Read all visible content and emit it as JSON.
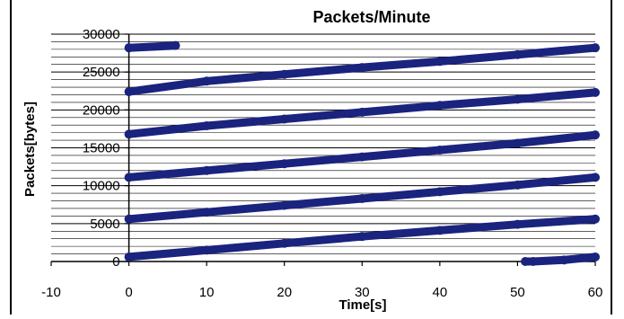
{
  "chart_data": {
    "type": "scatter",
    "title": "Packets/Minute",
    "xlabel": "Time[s]",
    "ylabel": "Packets[bytes]",
    "xlim": [
      -10,
      60
    ],
    "ylim": [
      0,
      30000
    ],
    "x_ticks": [
      -10,
      0,
      10,
      20,
      30,
      40,
      50,
      60
    ],
    "y_ticks": [
      0,
      5000,
      10000,
      15000,
      20000,
      25000,
      30000
    ],
    "grid": "horizontal",
    "legend": "none",
    "marker_color": "#1a237e",
    "series": [
      {
        "values": [
          {
            "x": 0,
            "y": 28200
          },
          {
            "x": 6,
            "y": 28500
          },
          {
            "x": 0,
            "y": 22400
          },
          {
            "x": 10,
            "y": 23800
          },
          {
            "x": 20,
            "y": 24700
          },
          {
            "x": 30,
            "y": 25600
          },
          {
            "x": 40,
            "y": 26400
          },
          {
            "x": 50,
            "y": 27300
          },
          {
            "x": 60,
            "y": 28200
          },
          {
            "x": 0,
            "y": 16800
          },
          {
            "x": 10,
            "y": 17900
          },
          {
            "x": 20,
            "y": 18800
          },
          {
            "x": 30,
            "y": 19700
          },
          {
            "x": 40,
            "y": 20600
          },
          {
            "x": 50,
            "y": 21400
          },
          {
            "x": 60,
            "y": 22300
          },
          {
            "x": 0,
            "y": 11100
          },
          {
            "x": 10,
            "y": 12000
          },
          {
            "x": 20,
            "y": 12900
          },
          {
            "x": 30,
            "y": 13800
          },
          {
            "x": 40,
            "y": 14700
          },
          {
            "x": 50,
            "y": 15600
          },
          {
            "x": 60,
            "y": 16700
          },
          {
            "x": 0,
            "y": 5600
          },
          {
            "x": 10,
            "y": 6500
          },
          {
            "x": 20,
            "y": 7400
          },
          {
            "x": 30,
            "y": 8300
          },
          {
            "x": 40,
            "y": 9200
          },
          {
            "x": 50,
            "y": 10100
          },
          {
            "x": 60,
            "y": 11100
          },
          {
            "x": 0,
            "y": 600
          },
          {
            "x": 10,
            "y": 1500
          },
          {
            "x": 20,
            "y": 2400
          },
          {
            "x": 30,
            "y": 3300
          },
          {
            "x": 40,
            "y": 4100
          },
          {
            "x": 50,
            "y": 4900
          },
          {
            "x": 60,
            "y": 5600
          },
          {
            "x": 51,
            "y": 0
          },
          {
            "x": 52,
            "y": 0
          },
          {
            "x": 56,
            "y": 200
          },
          {
            "x": 60,
            "y": 600
          }
        ]
      }
    ]
  }
}
